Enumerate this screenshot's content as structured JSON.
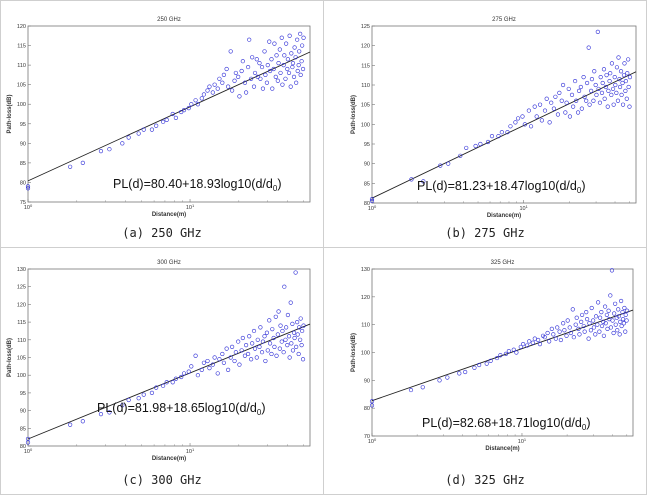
{
  "colors": {
    "marker": "#2b2bd6",
    "line": "#222222",
    "frame": "#777777",
    "grid_border": "#cfcfcf"
  },
  "panels": [
    {
      "caption": "(a) 250 GHz"
    },
    {
      "caption": "(b) 275 GHz"
    },
    {
      "caption": "(c) 300 GHz"
    },
    {
      "caption": "(d) 325 GHz"
    }
  ],
  "chart_data": [
    {
      "type": "scatter",
      "title": "250 GHz",
      "xlabel": "Distance(m)",
      "ylabel": "Path-loss(dB)",
      "xscale": "log",
      "xlim": [
        1,
        55
      ],
      "ylim": [
        75,
        120
      ],
      "y_ticks": [
        75,
        80,
        85,
        90,
        95,
        100,
        105,
        110,
        115,
        120
      ],
      "x_ticks": [
        1,
        10
      ],
      "x_tick_labels": [
        "10^0",
        "10^1"
      ],
      "equation": "PL(d)=80.40+18.93log10(d/d0)",
      "fit": {
        "intercept": 80.4,
        "slope": 18.93
      },
      "series": [
        {
          "x": [
            1,
            1,
            2,
            2,
            3,
            3,
            4,
            4,
            5,
            5,
            6,
            6,
            7,
            7,
            8,
            8,
            9,
            9,
            10,
            10,
            11,
            11,
            12,
            12,
            13,
            13,
            14,
            14,
            15,
            15,
            16,
            16,
            17,
            17,
            18,
            18,
            19,
            19,
            20,
            20,
            21,
            21,
            22,
            22,
            23,
            23,
            24,
            24,
            25,
            25,
            26,
            26,
            27,
            27,
            28,
            28,
            29,
            29,
            30,
            30,
            31,
            31,
            32,
            32,
            33,
            33,
            34,
            34,
            35,
            35,
            36,
            36,
            37,
            37,
            38,
            38,
            39,
            39,
            40,
            40,
            41,
            41,
            42,
            42,
            43,
            43,
            44,
            44,
            45,
            45,
            46,
            46,
            47,
            47,
            48,
            48,
            49,
            49,
            50,
            50
          ],
          "y": [
            78.5,
            79.0,
            84.0,
            85.0,
            88.0,
            88.5,
            90.0,
            91.5,
            92.5,
            93.5,
            93.5,
            94.5,
            95.5,
            96.0,
            97.5,
            96.5,
            98.0,
            98.5,
            99.0,
            100.0,
            101.0,
            100.0,
            101.5,
            102.5,
            103.5,
            104.5,
            103.0,
            105.0,
            104.0,
            106.5,
            105.5,
            107.5,
            109.0,
            104.5,
            113.5,
            103.5,
            106.0,
            108.0,
            107.0,
            102.0,
            108.5,
            111.0,
            105.5,
            103.0,
            109.5,
            116.5,
            106.5,
            112.0,
            104.5,
            108.0,
            111.5,
            107.0,
            110.5,
            106.5,
            109.5,
            104.0,
            113.5,
            107.5,
            105.5,
            110.0,
            116.0,
            108.5,
            111.5,
            104.0,
            109.0,
            115.5,
            107.0,
            112.5,
            106.0,
            110.5,
            114.0,
            108.0,
            117.0,
            105.0,
            110.0,
            112.5,
            106.5,
            115.5,
            109.0,
            111.5,
            108.0,
            117.5,
            104.5,
            113.0,
            109.5,
            110.5,
            107.0,
            114.5,
            112.0,
            105.5,
            116.5,
            108.5,
            110.0,
            113.5,
            118.0,
            107.5,
            111.0,
            115.0,
            109.0,
            117.0
          ]
        }
      ]
    },
    {
      "type": "scatter",
      "title": "275 GHz",
      "xlabel": "Distance(m)",
      "ylabel": "Path-loss(dB)",
      "xscale": "log",
      "xlim": [
        1,
        55
      ],
      "ylim": [
        80,
        125
      ],
      "y_ticks": [
        80,
        85,
        90,
        95,
        100,
        105,
        110,
        115,
        120,
        125
      ],
      "x_ticks": [
        1,
        10
      ],
      "x_tick_labels": [
        "10^0",
        "10^1"
      ],
      "equation": "PL(d)=81.23+18.47log10(d/d0)",
      "fit": {
        "intercept": 81.23,
        "slope": 18.47
      },
      "series": [
        {
          "x": [
            1,
            1,
            2,
            2,
            3,
            3,
            4,
            4,
            5,
            5,
            6,
            6,
            7,
            7,
            8,
            8,
            9,
            9,
            10,
            10,
            11,
            11,
            12,
            12,
            13,
            13,
            14,
            14,
            15,
            15,
            16,
            16,
            17,
            17,
            18,
            18,
            19,
            19,
            20,
            20,
            21,
            21,
            22,
            22,
            23,
            23,
            24,
            24,
            25,
            25,
            26,
            26,
            27,
            27,
            28,
            28,
            29,
            29,
            30,
            30,
            31,
            31,
            32,
            32,
            33,
            33,
            34,
            34,
            35,
            35,
            36,
            36,
            37,
            37,
            38,
            38,
            39,
            39,
            40,
            40,
            41,
            41,
            42,
            42,
            43,
            43,
            44,
            44,
            45,
            45,
            46,
            46,
            47,
            47,
            48,
            48,
            49,
            49,
            50,
            50
          ],
          "y": [
            80.5,
            81.0,
            86.0,
            85.5,
            89.5,
            90.0,
            92.0,
            94.0,
            94.5,
            95.0,
            95.5,
            97.0,
            97.0,
            98.0,
            98.0,
            99.5,
            100.5,
            101.5,
            102.0,
            100.0,
            103.5,
            99.5,
            104.5,
            102.0,
            105.0,
            101.0,
            103.5,
            106.5,
            100.5,
            105.5,
            104.0,
            107.0,
            102.5,
            108.0,
            106.0,
            110.0,
            103.0,
            105.5,
            109.0,
            102.0,
            107.5,
            104.5,
            111.0,
            106.0,
            103.0,
            108.5,
            109.5,
            104.0,
            112.0,
            107.0,
            106.0,
            110.5,
            119.5,
            105.0,
            108.5,
            111.5,
            106.0,
            113.5,
            110.0,
            107.5,
            123.5,
            109.0,
            105.5,
            112.0,
            108.0,
            110.5,
            114.0,
            106.5,
            109.5,
            112.5,
            104.5,
            108.5,
            111.0,
            113.0,
            107.5,
            115.5,
            109.0,
            105.0,
            112.0,
            110.0,
            108.0,
            114.5,
            106.0,
            117.0,
            111.5,
            109.5,
            113.5,
            107.5,
            110.5,
            105.0,
            112.5,
            115.5,
            108.5,
            111.0,
            106.5,
            113.0,
            116.5,
            109.5,
            104.5,
            112.0
          ]
        }
      ]
    },
    {
      "type": "scatter",
      "title": "300 GHz",
      "xlabel": "Distance(m)",
      "ylabel": "Path-loss(dB)",
      "xscale": "log",
      "xlim": [
        1,
        55
      ],
      "ylim": [
        80,
        130
      ],
      "y_ticks": [
        80,
        85,
        90,
        95,
        100,
        105,
        110,
        115,
        120,
        125,
        130
      ],
      "x_ticks": [
        1,
        10
      ],
      "x_tick_labels": [
        "10^0",
        "10^1"
      ],
      "equation": "PL(d)=81.98+18.65log10(d/d0)",
      "fit": {
        "intercept": 81.98,
        "slope": 18.65
      },
      "series": [
        {
          "x": [
            1,
            1,
            2,
            2,
            3,
            3,
            4,
            4,
            5,
            5,
            6,
            6,
            7,
            7,
            8,
            8,
            9,
            9,
            10,
            10,
            11,
            11,
            12,
            12,
            13,
            13,
            14,
            14,
            15,
            15,
            16,
            16,
            17,
            17,
            18,
            18,
            19,
            19,
            20,
            20,
            21,
            21,
            22,
            22,
            23,
            23,
            24,
            24,
            25,
            25,
            26,
            26,
            27,
            27,
            28,
            28,
            29,
            29,
            30,
            30,
            31,
            31,
            32,
            32,
            33,
            33,
            34,
            34,
            35,
            35,
            36,
            36,
            37,
            37,
            38,
            38,
            39,
            39,
            40,
            40,
            41,
            41,
            42,
            42,
            43,
            43,
            44,
            44,
            45,
            45,
            46,
            46,
            47,
            47,
            48,
            48,
            49,
            49,
            50,
            50
          ],
          "y": [
            81.0,
            82.0,
            86.0,
            87.0,
            89.0,
            89.5,
            91.5,
            93.0,
            93.5,
            94.5,
            95.0,
            96.5,
            97.0,
            98.0,
            98.0,
            99.0,
            99.5,
            100.5,
            101.0,
            102.5,
            105.5,
            100.0,
            101.5,
            103.5,
            104.0,
            102.0,
            103.0,
            105.0,
            100.5,
            104.5,
            106.0,
            103.5,
            107.5,
            101.5,
            105.0,
            108.0,
            104.0,
            106.5,
            109.5,
            103.0,
            107.0,
            110.5,
            105.5,
            108.5,
            106.0,
            111.0,
            104.5,
            109.0,
            112.5,
            107.5,
            105.0,
            110.0,
            108.0,
            113.5,
            106.5,
            109.5,
            111.0,
            104.0,
            112.0,
            107.0,
            115.5,
            109.0,
            106.0,
            113.0,
            110.5,
            108.0,
            116.5,
            105.5,
            111.5,
            118.0,
            107.5,
            114.0,
            109.5,
            112.5,
            106.5,
            125.0,
            110.0,
            113.5,
            108.5,
            117.0,
            111.0,
            105.0,
            120.5,
            109.0,
            114.5,
            107.0,
            112.0,
            110.5,
            129.0,
            108.0,
            115.0,
            111.5,
            106.0,
            113.5,
            110.0,
            116.0,
            108.5,
            112.5,
            104.5,
            114.0
          ]
        }
      ]
    },
    {
      "type": "scatter",
      "title": "325 GHz",
      "xlabel": "Distance(m)",
      "ylabel": "Path-loss(dB)",
      "xscale": "log",
      "xlim": [
        1,
        55
      ],
      "ylim": [
        70,
        130
      ],
      "y_ticks": [
        70,
        80,
        90,
        100,
        110,
        120,
        130
      ],
      "x_ticks": [
        1,
        10
      ],
      "x_tick_labels": [
        "10^0",
        "10^1"
      ],
      "equation": "PL(d)=82.68+18.71log10(d/d0)",
      "fit": {
        "intercept": 82.68,
        "slope": 18.71
      },
      "series": [
        {
          "x": [
            1,
            1,
            2,
            2,
            3,
            3,
            4,
            4,
            5,
            5,
            6,
            6,
            7,
            7,
            8,
            8,
            9,
            9,
            10,
            10,
            11,
            11,
            12,
            12,
            13,
            13,
            14,
            14,
            15,
            15,
            16,
            16,
            17,
            17,
            18,
            18,
            19,
            19,
            20,
            20,
            21,
            21,
            22,
            22,
            23,
            23,
            24,
            24,
            25,
            25,
            26,
            26,
            27,
            27,
            28,
            28,
            29,
            29,
            30,
            30,
            31,
            31,
            32,
            32,
            33,
            33,
            34,
            34,
            35,
            35,
            36,
            36,
            37,
            37,
            38,
            38,
            39,
            39,
            40,
            40,
            41,
            41,
            42,
            42,
            43,
            43,
            44,
            44,
            45,
            45,
            46,
            46,
            47,
            47,
            48,
            48,
            49,
            49,
            50,
            50
          ],
          "y": [
            81.0,
            82.5,
            86.5,
            87.5,
            90.0,
            91.0,
            92.5,
            93.0,
            94.5,
            95.5,
            96.0,
            97.0,
            98.0,
            99.0,
            99.5,
            100.5,
            101.0,
            100.0,
            102.0,
            103.0,
            102.5,
            104.0,
            103.5,
            105.0,
            104.5,
            103.0,
            106.0,
            105.5,
            107.0,
            104.0,
            108.5,
            106.5,
            105.0,
            109.0,
            107.5,
            104.5,
            110.5,
            108.0,
            106.0,
            111.5,
            109.0,
            107.0,
            115.5,
            105.5,
            110.0,
            112.5,
            108.5,
            106.5,
            111.0,
            113.5,
            109.5,
            107.5,
            114.5,
            112.0,
            105.0,
            110.5,
            108.0,
            116.0,
            111.5,
            109.0,
            106.5,
            113.0,
            110.0,
            118.0,
            107.5,
            112.5,
            114.5,
            109.5,
            111.0,
            106.0,
            116.5,
            110.5,
            113.5,
            108.5,
            115.0,
            112.0,
            120.5,
            109.0,
            129.5,
            111.5,
            107.0,
            114.0,
            117.5,
            110.0,
            112.5,
            108.0,
            115.5,
            113.0,
            106.5,
            111.0,
            118.5,
            109.5,
            114.5,
            112.0,
            110.5,
            116.0,
            107.5,
            113.5,
            111.5,
            115.0
          ]
        }
      ]
    }
  ]
}
